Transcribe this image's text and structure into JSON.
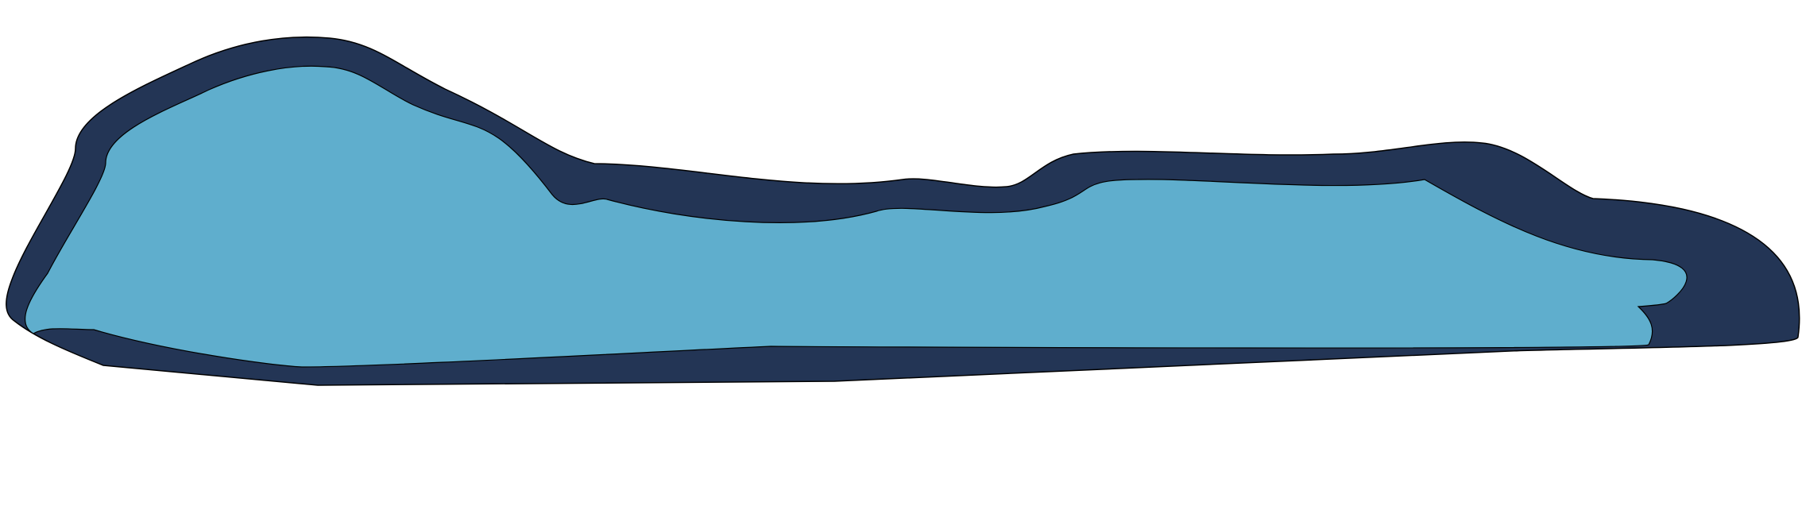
{
  "shapes": {
    "outer_color": "#233555",
    "inner_color": "#5faecd",
    "outline_color": "#000000"
  }
}
